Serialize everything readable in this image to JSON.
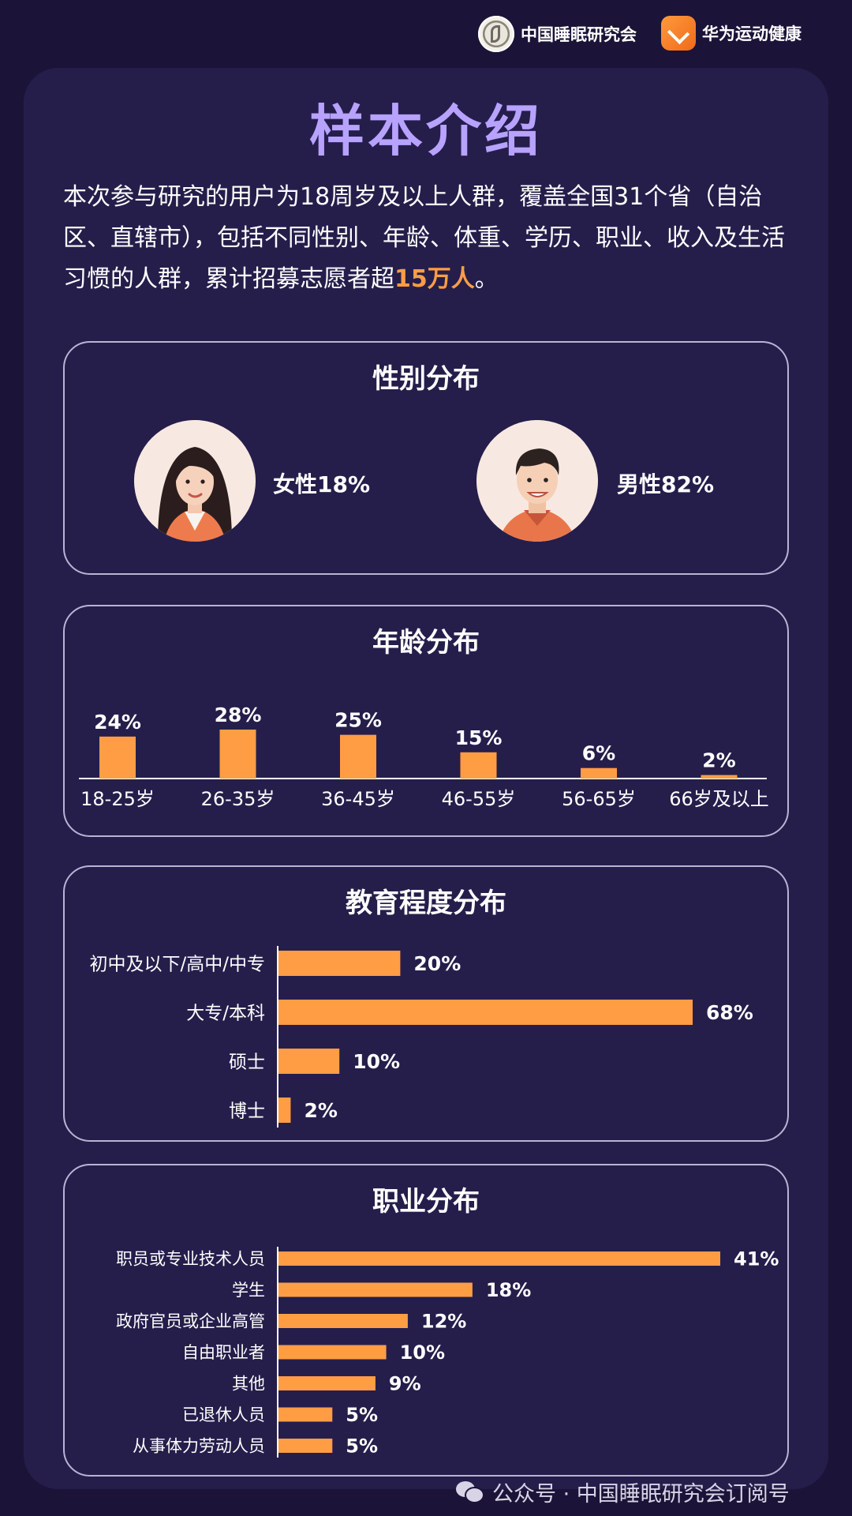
{
  "header": {
    "logo_left_text": "中国睡眠研究会",
    "logo_right_text": "华为运动健康"
  },
  "title": "样本介绍",
  "intro": {
    "text": "本次参与研究的用户为18周岁及以上人群，覆盖全国31个省（自治区、直辖市），包括不同性别、年龄、体重、学历、职业、收入及生活习惯的人群，累计招募志愿者超",
    "highlight": "15万人",
    "suffix": "。"
  },
  "gender": {
    "title": "性别分布",
    "female_label": "女性18%",
    "male_label": "男性82%"
  },
  "watermark": "公众号 · 中国睡眠研究会订阅号",
  "colors": {
    "bar": "#ff9d45",
    "title_purple": "#b7a2ff",
    "panel": "#251e4b",
    "background": "#1b1438"
  },
  "chart_data": [
    {
      "type": "pie",
      "title": "性别分布",
      "categories": [
        "女性",
        "男性"
      ],
      "values": [
        18,
        82
      ],
      "labels": [
        "女性18%",
        "男性82%"
      ]
    },
    {
      "type": "bar",
      "title": "年龄分布",
      "categories": [
        "18-25岁",
        "26-35岁",
        "36-45岁",
        "46-55岁",
        "56-65岁",
        "66岁及以上"
      ],
      "values": [
        24,
        28,
        25,
        15,
        6,
        2
      ],
      "labels": [
        "24%",
        "28%",
        "25%",
        "15%",
        "6%",
        "2%"
      ],
      "ylim": [
        0,
        28
      ]
    },
    {
      "type": "bar",
      "orientation": "horizontal",
      "title": "教育程度分布",
      "categories": [
        "初中及以下/高中/中专",
        "大专/本科",
        "硕士",
        "博士"
      ],
      "values": [
        20,
        68,
        10,
        2
      ],
      "labels": [
        "20%",
        "68%",
        "10%",
        "2%"
      ],
      "xlim": [
        0,
        68
      ]
    },
    {
      "type": "bar",
      "orientation": "horizontal",
      "title": "职业分布",
      "categories": [
        "职员或专业技术人员",
        "学生",
        "政府官员或企业高管",
        "自由职业者",
        "其他",
        "已退休人员",
        "从事体力劳动人员"
      ],
      "values": [
        41,
        18,
        12,
        10,
        9,
        5,
        5
      ],
      "labels": [
        "41%",
        "18%",
        "12%",
        "10%",
        "9%",
        "5%",
        "5%"
      ],
      "xlim": [
        0,
        41
      ]
    }
  ]
}
